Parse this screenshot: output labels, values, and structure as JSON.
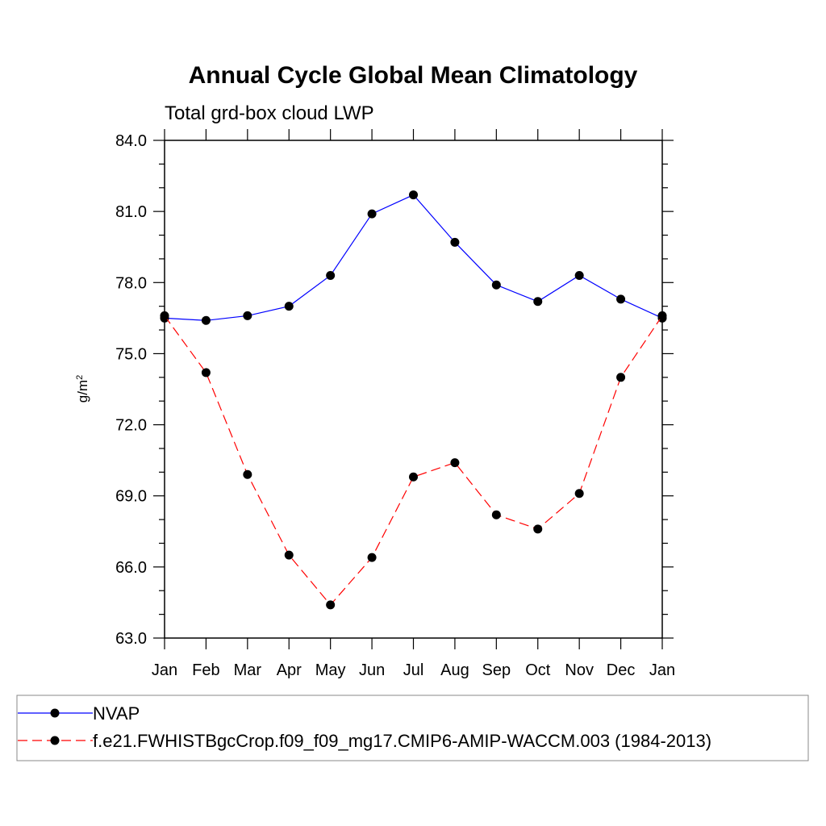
{
  "chart_data": {
    "type": "line",
    "title": "Annual Cycle Global Mean Climatology",
    "subtitle": "Total grd-box cloud LWP",
    "ylabel": "g/m",
    "ylabel_sup": "2",
    "xlabel": "",
    "categories": [
      "Jan",
      "Feb",
      "Mar",
      "Apr",
      "May",
      "Jun",
      "Jul",
      "Aug",
      "Sep",
      "Oct",
      "Nov",
      "Dec",
      "Jan"
    ],
    "ylim": [
      63.0,
      84.0
    ],
    "yticks": [
      63.0,
      66.0,
      69.0,
      72.0,
      75.0,
      78.0,
      81.0,
      84.0
    ],
    "ytick_labels": [
      "63.0",
      "66.0",
      "69.0",
      "72.0",
      "75.0",
      "78.0",
      "81.0",
      "84.0"
    ],
    "grid": false,
    "legend_position": "bottom",
    "series": [
      {
        "name": "NVAP",
        "color": "#0000ff",
        "dash": "solid",
        "values": [
          76.5,
          76.4,
          76.6,
          77.0,
          78.3,
          80.9,
          81.7,
          79.7,
          77.9,
          77.2,
          78.3,
          77.3,
          76.5
        ]
      },
      {
        "name": "f.e21.FWHISTBgcCrop.f09_f09_mg17.CMIP6-AMIP-WACCM.003 (1984-2013)",
        "color": "#ff0000",
        "dash": "dashed",
        "values": [
          76.6,
          74.2,
          69.9,
          66.5,
          64.4,
          66.4,
          69.8,
          70.4,
          68.2,
          67.6,
          69.1,
          74.0,
          76.6
        ]
      }
    ]
  }
}
